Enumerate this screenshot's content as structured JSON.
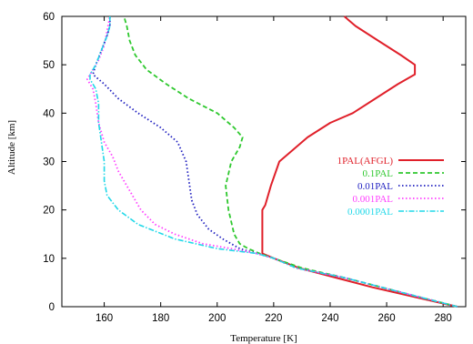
{
  "chart_data": {
    "type": "line",
    "title": "",
    "xlabel": "Temperature [K]",
    "ylabel": "Altitude [km]",
    "xlim": [
      145,
      288
    ],
    "ylim": [
      0,
      60
    ],
    "xticks": [
      160,
      180,
      200,
      220,
      240,
      260,
      280
    ],
    "yticks": [
      0,
      10,
      20,
      30,
      40,
      50,
      60
    ],
    "grid": false,
    "legend_position": "right-middle",
    "series": [
      {
        "name": "1PAL(AFGL)",
        "color": "#e0202a",
        "style": "solid",
        "points": [
          [
            285,
            0
          ],
          [
            270,
            2
          ],
          [
            255,
            4
          ],
          [
            242,
            6
          ],
          [
            229,
            8
          ],
          [
            220,
            10
          ],
          [
            216,
            11
          ],
          [
            216,
            15
          ],
          [
            216,
            20
          ],
          [
            217,
            21
          ],
          [
            219,
            25
          ],
          [
            222,
            30
          ],
          [
            226,
            32
          ],
          [
            232,
            35
          ],
          [
            240,
            38
          ],
          [
            248,
            40
          ],
          [
            256,
            43
          ],
          [
            264,
            46
          ],
          [
            270,
            48
          ],
          [
            270,
            50
          ],
          [
            265,
            52
          ],
          [
            257,
            55
          ],
          [
            249,
            58
          ],
          [
            245,
            60
          ]
        ]
      },
      {
        "name": "0.1PAL",
        "color": "#2ec82e",
        "style": "dashed",
        "points": [
          [
            285,
            0
          ],
          [
            265,
            3
          ],
          [
            245,
            6
          ],
          [
            230,
            8
          ],
          [
            220,
            10
          ],
          [
            215,
            11
          ],
          [
            211,
            12
          ],
          [
            208,
            13
          ],
          [
            206,
            15
          ],
          [
            204,
            20
          ],
          [
            203,
            25
          ],
          [
            205,
            30
          ],
          [
            208,
            33
          ],
          [
            209,
            35
          ],
          [
            206,
            37
          ],
          [
            200,
            40
          ],
          [
            190,
            43
          ],
          [
            182,
            46
          ],
          [
            175,
            49
          ],
          [
            171,
            52
          ],
          [
            169,
            55
          ],
          [
            168,
            58
          ],
          [
            167,
            60
          ]
        ]
      },
      {
        "name": "0.01PAL",
        "color": "#2020c0",
        "style": "dotted",
        "points": [
          [
            285,
            0
          ],
          [
            265,
            3
          ],
          [
            245,
            6
          ],
          [
            228,
            8
          ],
          [
            220,
            10
          ],
          [
            214,
            11
          ],
          [
            208,
            12
          ],
          [
            202,
            14
          ],
          [
            197,
            16
          ],
          [
            193,
            19
          ],
          [
            191,
            22
          ],
          [
            190,
            26
          ],
          [
            189,
            30
          ],
          [
            186,
            34
          ],
          [
            180,
            37
          ],
          [
            172,
            40
          ],
          [
            165,
            43
          ],
          [
            160,
            46
          ],
          [
            156,
            48
          ],
          [
            157,
            50
          ],
          [
            159,
            53
          ],
          [
            161,
            56
          ],
          [
            162,
            58
          ],
          [
            162,
            60
          ]
        ]
      },
      {
        "name": "0.001PAL",
        "color": "#ff40ff",
        "style": "dotted",
        "points": [
          [
            285,
            0
          ],
          [
            265,
            3
          ],
          [
            245,
            6
          ],
          [
            228,
            8
          ],
          [
            220,
            10
          ],
          [
            214,
            11
          ],
          [
            205,
            12
          ],
          [
            195,
            13
          ],
          [
            185,
            15
          ],
          [
            178,
            17
          ],
          [
            173,
            20
          ],
          [
            170,
            23
          ],
          [
            167,
            26
          ],
          [
            165,
            28
          ],
          [
            163,
            31
          ],
          [
            160,
            34
          ],
          [
            158,
            38
          ],
          [
            157,
            42
          ],
          [
            156,
            45
          ],
          [
            154,
            47
          ],
          [
            155,
            48
          ],
          [
            158,
            51
          ],
          [
            160,
            54
          ],
          [
            161,
            57
          ],
          [
            162,
            60
          ]
        ]
      },
      {
        "name": "0.0001PAL",
        "color": "#20d8e8",
        "style": "dashdot",
        "points": [
          [
            285,
            0
          ],
          [
            265,
            3
          ],
          [
            245,
            6
          ],
          [
            228,
            8
          ],
          [
            220,
            10
          ],
          [
            214,
            11
          ],
          [
            200,
            12
          ],
          [
            185,
            14
          ],
          [
            172,
            17
          ],
          [
            165,
            20
          ],
          [
            161,
            23
          ],
          [
            160,
            26
          ],
          [
            160,
            30
          ],
          [
            159,
            34
          ],
          [
            158,
            38
          ],
          [
            158,
            42
          ],
          [
            157,
            45
          ],
          [
            155,
            47
          ],
          [
            155,
            48
          ],
          [
            157,
            50
          ],
          [
            159,
            53
          ],
          [
            161,
            56
          ],
          [
            162,
            58
          ],
          [
            162,
            60
          ]
        ]
      }
    ]
  }
}
